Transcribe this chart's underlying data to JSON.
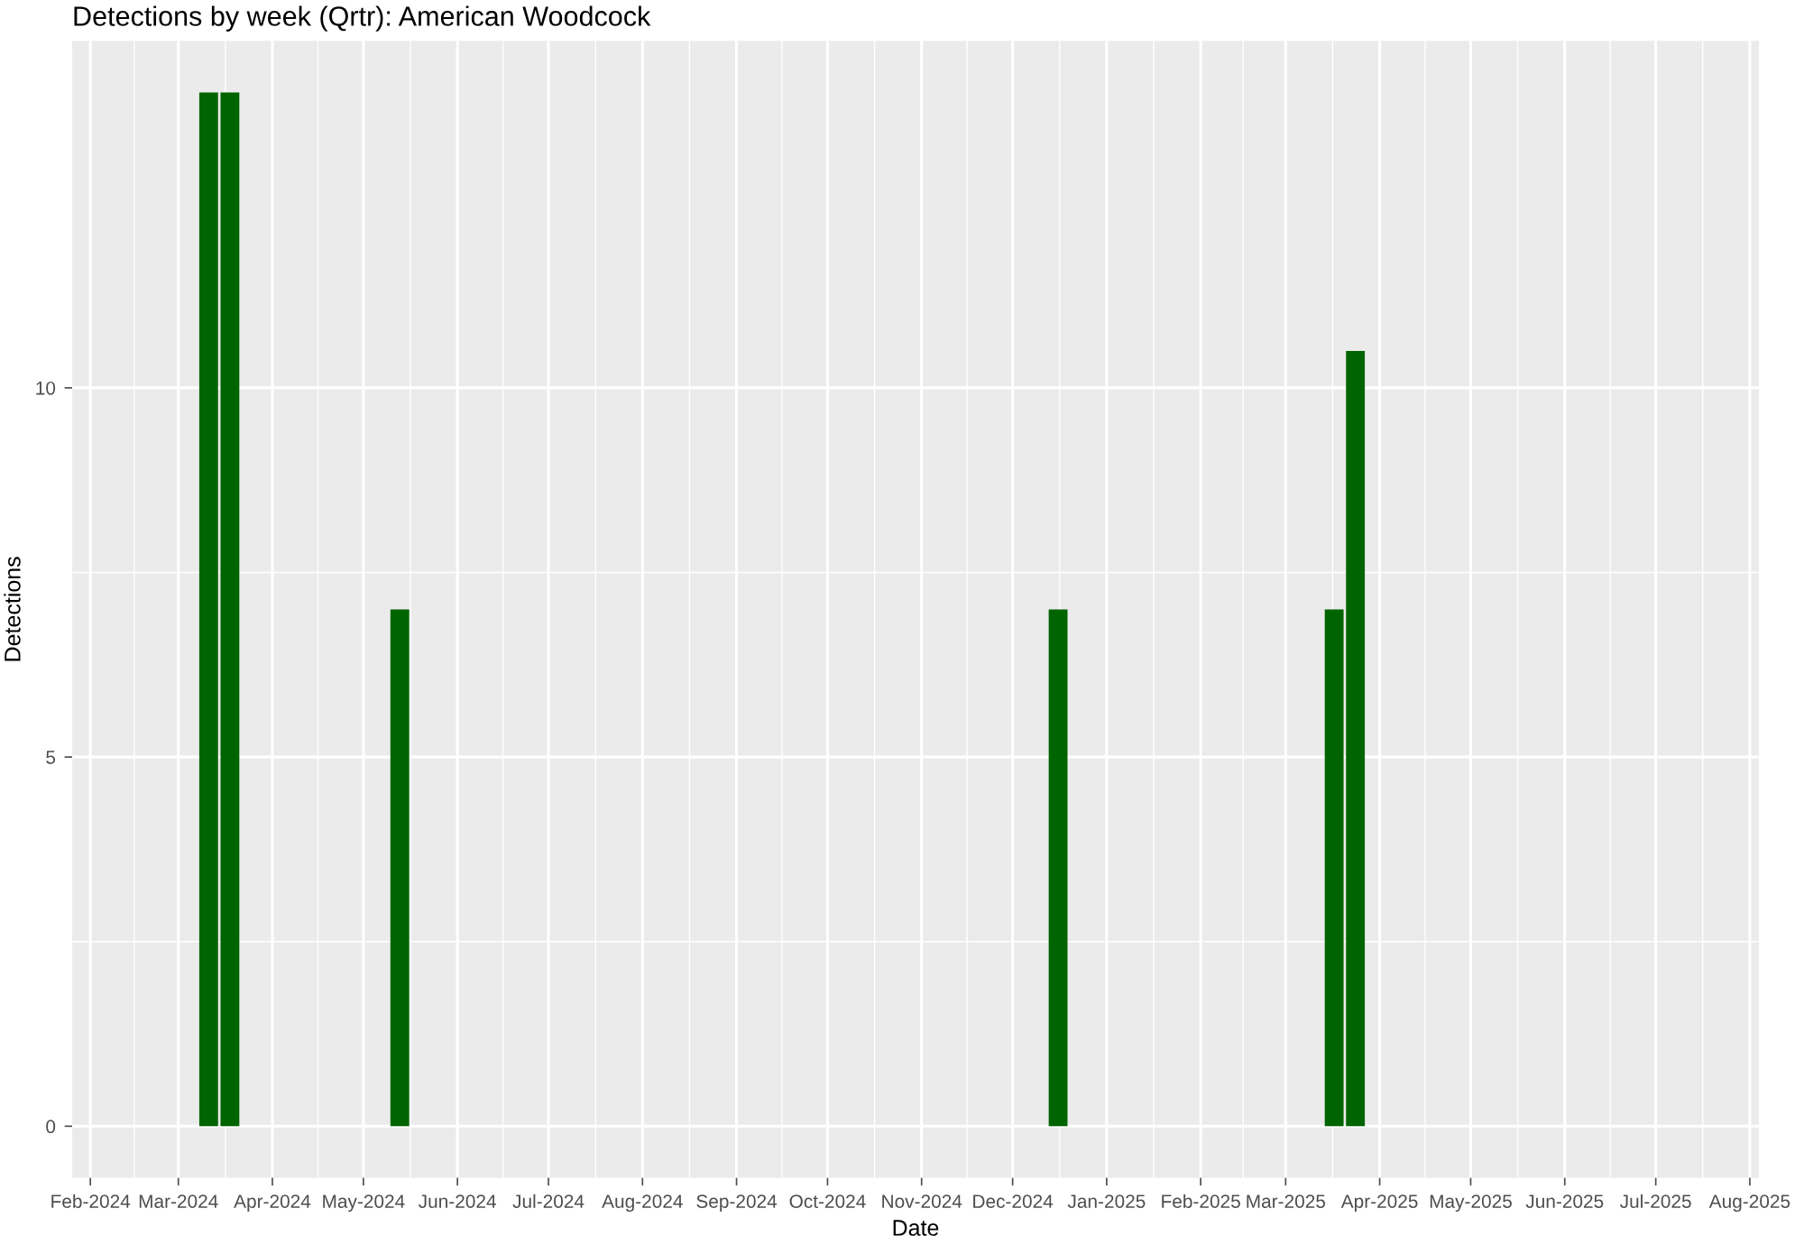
{
  "chart_data": {
    "type": "bar",
    "title": "Detections by week (Qrtr): American Woodcock",
    "xlabel": "Date",
    "ylabel": "Detections",
    "x": [
      "2024-03-11",
      "2024-03-18",
      "2024-05-13",
      "2024-12-16",
      "2025-03-17",
      "2025-03-24"
    ],
    "values": [
      14,
      14,
      7,
      7,
      7,
      10.5
    ],
    "color": "#006400",
    "xlim": [
      "2024-01-26",
      "2025-08-04"
    ],
    "ylim": [
      -0.7,
      14.7
    ],
    "yticks": [
      0,
      5,
      10
    ],
    "xticks": [
      {
        "value": "2024-02-01",
        "label": "Feb-2024"
      },
      {
        "value": "2024-03-01",
        "label": "Mar-2024"
      },
      {
        "value": "2024-04-01",
        "label": "Apr-2024"
      },
      {
        "value": "2024-05-01",
        "label": "May-2024"
      },
      {
        "value": "2024-06-01",
        "label": "Jun-2024"
      },
      {
        "value": "2024-07-01",
        "label": "Jul-2024"
      },
      {
        "value": "2024-08-01",
        "label": "Aug-2024"
      },
      {
        "value": "2024-09-01",
        "label": "Sep-2024"
      },
      {
        "value": "2024-10-01",
        "label": "Oct-2024"
      },
      {
        "value": "2024-11-01",
        "label": "Nov-2024"
      },
      {
        "value": "2024-12-01",
        "label": "Dec-2024"
      },
      {
        "value": "2025-01-01",
        "label": "Jan-2025"
      },
      {
        "value": "2025-02-01",
        "label": "Feb-2025"
      },
      {
        "value": "2025-03-01",
        "label": "Mar-2025"
      },
      {
        "value": "2025-04-01",
        "label": "Apr-2025"
      },
      {
        "value": "2025-05-01",
        "label": "May-2025"
      },
      {
        "value": "2025-06-01",
        "label": "Jun-2025"
      },
      {
        "value": "2025-07-01",
        "label": "Jul-2025"
      },
      {
        "value": "2025-08-01",
        "label": "Aug-2025"
      }
    ],
    "grid": true
  }
}
